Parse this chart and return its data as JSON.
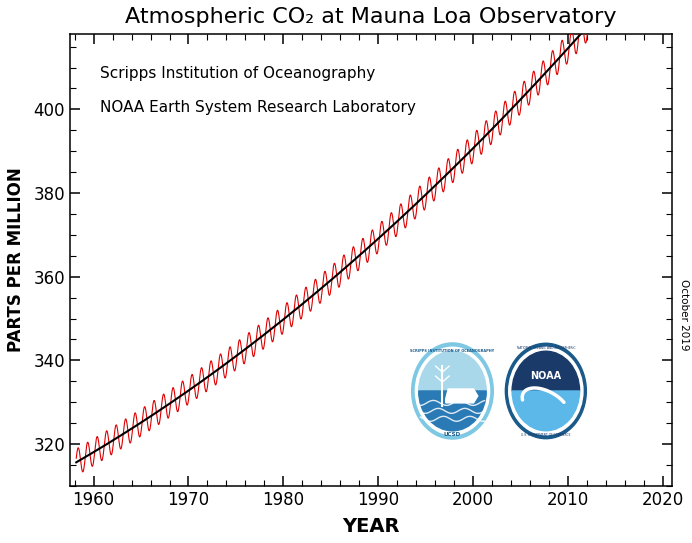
{
  "title": "Atmospheric CO₂ at Mauna Loa Observatory",
  "xlabel": "YEAR",
  "ylabel": "PARTS PER MILLION",
  "annotation_line1": "Scripps Institution of Oceanography",
  "annotation_line2": "NOAA Earth System Research Laboratory",
  "watermark": "October 2019",
  "xlim": [
    1957.5,
    2021
  ],
  "ylim": [
    310,
    418
  ],
  "xticks": [
    1960,
    1970,
    1980,
    1990,
    2000,
    2010,
    2020
  ],
  "yticks": [
    320,
    340,
    360,
    380,
    400
  ],
  "background_color": "#ffffff",
  "plot_bg_color": "#ffffff",
  "seasonal_color": "#dd0000",
  "trend_color": "#000000",
  "co2_start_year": 1958.17,
  "co2_end_year": 2019.75,
  "trend_a0": 315.4,
  "trend_a1": 1.31,
  "trend_a2": 0.0115,
  "seasonal_amplitude_base": 3.2,
  "seasonal_amplitude_slope": 0.005
}
